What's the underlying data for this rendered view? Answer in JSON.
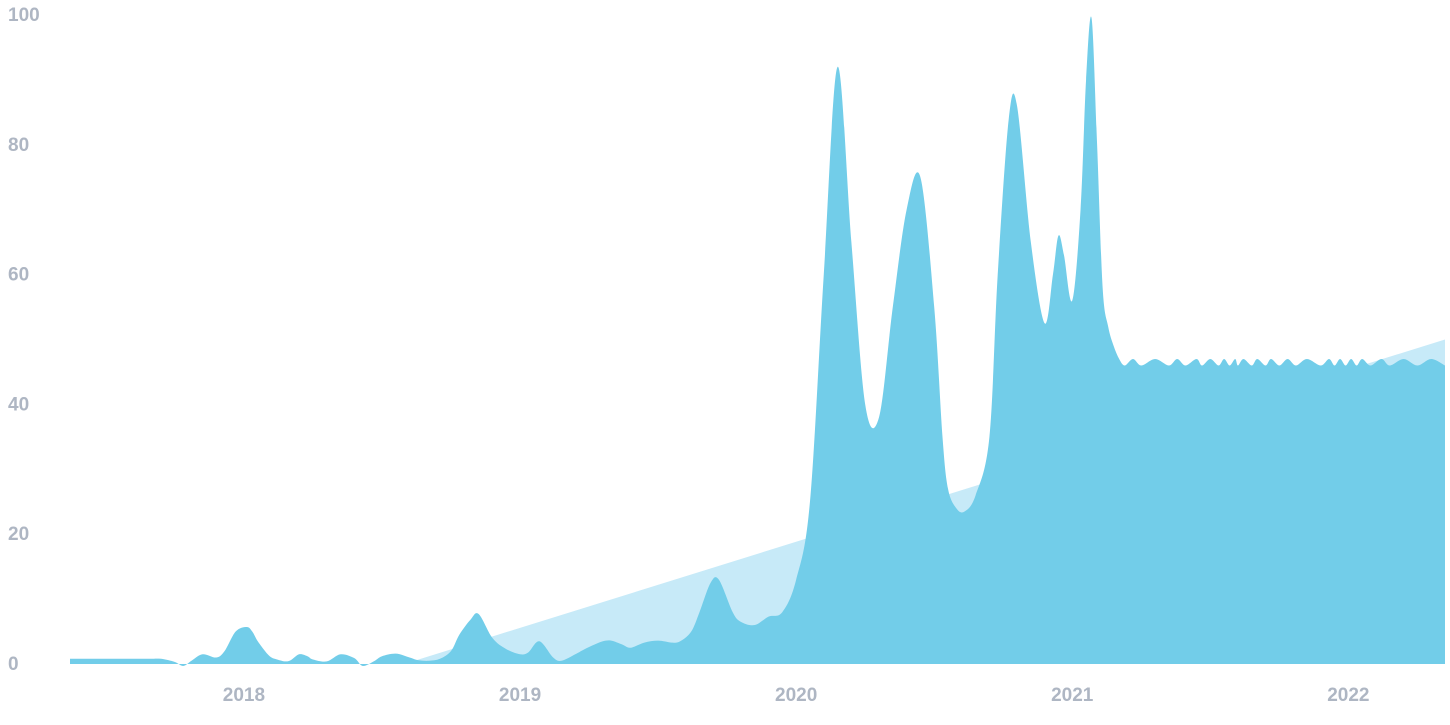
{
  "chart_data": {
    "type": "area",
    "x_unit": "year",
    "xlim": [
      2017.22,
      2022.2
    ],
    "ylim": [
      0,
      100
    ],
    "y_ticks": [
      "0",
      "20",
      "40",
      "60",
      "80",
      "100"
    ],
    "x_ticks": [
      {
        "label": "2018",
        "value": 2017.85
      },
      {
        "label": "2019",
        "value": 2018.85
      },
      {
        "label": "2020",
        "value": 2019.85
      },
      {
        "label": "2021",
        "value": 2020.85
      },
      {
        "label": "2022",
        "value": 2021.85
      }
    ],
    "grid": false,
    "colors": {
      "series": "#72cde9",
      "trend": "#c7eaf8",
      "tick_text": "#aeb6c3"
    },
    "trend": {
      "x": [
        2018.43,
        2022.2
      ],
      "y": [
        0,
        50
      ]
    },
    "series": [
      {
        "x": [
          2017.22,
          2017.3,
          2017.4,
          2017.5,
          2017.55,
          2017.6,
          2017.63,
          2017.66,
          2017.7,
          2017.75,
          2017.78,
          2017.82,
          2017.86,
          2017.88,
          2017.9,
          2017.93,
          2017.95,
          2017.97,
          2018.0,
          2018.02,
          2018.05,
          2018.08,
          2018.1,
          2018.15,
          2018.2,
          2018.25,
          2018.28,
          2018.32,
          2018.35,
          2018.4,
          2018.45,
          2018.48,
          2018.52,
          2018.56,
          2018.6,
          2018.63,
          2018.67,
          2018.7,
          2018.75,
          2018.8,
          2018.85,
          2018.88,
          2018.92,
          2018.97,
          2019.0,
          2019.05,
          2019.08,
          2019.12,
          2019.15,
          2019.18,
          2019.22,
          2019.25,
          2019.3,
          2019.35,
          2019.4,
          2019.43,
          2019.47,
          2019.5,
          2019.54,
          2019.57,
          2019.62,
          2019.65,
          2019.7,
          2019.75,
          2019.8,
          2019.85,
          2019.9,
          2019.95,
          2020.0,
          2020.05,
          2020.1,
          2020.15,
          2020.2,
          2020.25,
          2020.3,
          2020.35,
          2020.38,
          2020.4,
          2020.43,
          2020.46,
          2020.5,
          2020.55,
          2020.58,
          2020.62,
          2020.65,
          2020.7,
          2020.75,
          2020.78,
          2020.8,
          2020.82,
          2020.85,
          2020.88,
          2020.9,
          2020.92,
          2020.94,
          2020.96,
          2020.98,
          2021.0,
          2021.02,
          2021.04,
          2021.07,
          2021.1,
          2021.15,
          2021.2,
          2021.23,
          2021.26,
          2021.3,
          2021.32,
          2021.35,
          2021.38,
          2021.4,
          2021.42,
          2021.44,
          2021.45,
          2021.47,
          2021.5,
          2021.52,
          2021.55,
          2021.57,
          2021.6,
          2021.63,
          2021.66,
          2021.7,
          2021.75,
          2021.78,
          2021.8,
          2021.82,
          2021.84,
          2021.86,
          2021.88,
          2021.9,
          2021.93,
          2021.97,
          2022.0,
          2022.05,
          2022.1,
          2022.15,
          2022.2
        ],
        "y": [
          0.8,
          0.8,
          0.8,
          0.8,
          0.8,
          0.3,
          -0.3,
          0.5,
          1.5,
          1.0,
          2.0,
          5.0,
          5.7,
          5.0,
          3.5,
          1.8,
          1.0,
          0.7,
          0.4,
          0.6,
          1.5,
          1.2,
          0.7,
          0.4,
          1.5,
          0.9,
          -0.3,
          0.4,
          1.2,
          1.6,
          1.0,
          0.6,
          0.5,
          0.8,
          2.0,
          4.5,
          6.8,
          7.7,
          4.0,
          2.3,
          1.5,
          1.8,
          3.5,
          1.0,
          0.5,
          1.5,
          2.2,
          3.0,
          3.5,
          3.6,
          3.0,
          2.5,
          3.3,
          3.6,
          3.3,
          3.5,
          5.0,
          8.0,
          12.5,
          13.0,
          8.0,
          6.5,
          6.0,
          7.3,
          8.0,
          13.0,
          25.0,
          60.0,
          92.0,
          65.0,
          40.0,
          38.0,
          55.0,
          70.0,
          75.0,
          55.0,
          35.0,
          27.0,
          24.0,
          23.5,
          26.0,
          35.0,
          60.0,
          84.0,
          86.0,
          65.0,
          52.5,
          60.0,
          66.0,
          63.0,
          56.0,
          70.0,
          90.0,
          99.5,
          80.0,
          58.0,
          52.0,
          49.0,
          47.0,
          46.0,
          47.0,
          46.0,
          47.0,
          46.0,
          47.0,
          46.0,
          47.0,
          46.0,
          47.0,
          46.0,
          47.0,
          46.0,
          47.0,
          46.0,
          47.0,
          46.0,
          47.0,
          46.0,
          47.0,
          46.0,
          47.0,
          46.0,
          47.0,
          46.0,
          47.0,
          46.0,
          47.0,
          46.0,
          47.0,
          46.0,
          47.0,
          46.0,
          47.0,
          46.0,
          47.0,
          46.0,
          47.0,
          46.0
        ]
      }
    ]
  }
}
